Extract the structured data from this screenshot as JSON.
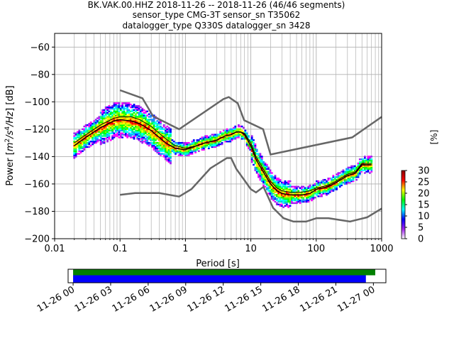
{
  "chart_data": {
    "type": "heatmap",
    "title": {
      "line1": "BK.VAK.00.HHZ   2018-11-26 -- 2018-11-26  (46/46 segments)",
      "line2": "sensor_type CMG-3T sensor_sn T35062",
      "line3": "datalogger_type Q330S datalogger_sn 3428"
    },
    "xlabel": "Period [s]",
    "ylabel_parts": {
      "a": "Power [",
      "b": "m",
      "c": "2",
      "d": "/s",
      "e": "4",
      "f": "/Hz",
      "g": "] [dB]"
    },
    "xscale": "log",
    "xlim": [
      0.01,
      1000
    ],
    "ylim": [
      -200,
      -50
    ],
    "grid": true,
    "x_tick_labels": [
      "0.01",
      "0.1",
      "1",
      "10",
      "100",
      "1000"
    ],
    "x_tick_values": [
      0.01,
      0.1,
      1,
      10,
      100,
      1000
    ],
    "y_tick_labels": [
      "−60",
      "−80",
      "−100",
      "−120",
      "−140",
      "−160",
      "−180",
      "−200"
    ],
    "y_tick_values": [
      -60,
      -80,
      -100,
      -120,
      -140,
      -160,
      -180,
      -200
    ],
    "colorbar": {
      "label": "[%]",
      "range": [
        0,
        30
      ],
      "tick_labels": [
        "0",
        "5",
        "10",
        "15",
        "20",
        "25",
        "30"
      ],
      "tick_values": [
        0,
        5,
        10,
        15,
        20,
        25,
        30
      ],
      "colors": [
        "#ffffff",
        "#a020f0",
        "#0000ff",
        "#00ffff",
        "#00ff00",
        "#ffff00",
        "#ff0000",
        "#8b0000"
      ]
    },
    "noise_models": {
      "color": "#666666",
      "high": [
        [
          0.1,
          -91.5
        ],
        [
          0.22,
          -97.4
        ],
        [
          0.32,
          -110.5
        ],
        [
          0.8,
          -120
        ],
        [
          3.8,
          -98
        ],
        [
          4.6,
          -96.5
        ],
        [
          6.3,
          -101
        ],
        [
          7.9,
          -113.5
        ],
        [
          15.4,
          -120
        ],
        [
          20,
          -138.5
        ],
        [
          354.8,
          -126
        ],
        [
          1000,
          -111
        ]
      ],
      "low": [
        [
          0.1,
          -168
        ],
        [
          0.17,
          -166.7
        ],
        [
          0.4,
          -166.7
        ],
        [
          0.8,
          -169.2
        ],
        [
          1.24,
          -163.7
        ],
        [
          2.4,
          -148.6
        ],
        [
          4.3,
          -141.1
        ],
        [
          5,
          -141.1
        ],
        [
          6,
          -149
        ],
        [
          10,
          -163.8
        ],
        [
          12,
          -166.2
        ],
        [
          15.6,
          -162.1
        ],
        [
          21.9,
          -177.5
        ],
        [
          31.6,
          -185
        ],
        [
          45,
          -187.5
        ],
        [
          70,
          -187.5
        ],
        [
          101,
          -185
        ],
        [
          154,
          -185
        ],
        [
          328,
          -187.5
        ],
        [
          600,
          -184.4
        ],
        [
          1000,
          -178
        ]
      ]
    },
    "median_curve": {
      "color": "#000000",
      "points": [
        [
          0.02,
          -132
        ],
        [
          0.03,
          -126
        ],
        [
          0.05,
          -119
        ],
        [
          0.08,
          -114
        ],
        [
          0.1,
          -113
        ],
        [
          0.15,
          -114
        ],
        [
          0.2,
          -116
        ],
        [
          0.3,
          -121
        ],
        [
          0.5,
          -130
        ],
        [
          0.7,
          -134
        ],
        [
          1,
          -135
        ],
        [
          1.5,
          -132
        ],
        [
          2,
          -130
        ],
        [
          3,
          -128
        ],
        [
          4,
          -125
        ],
        [
          5,
          -124
        ],
        [
          6,
          -122
        ],
        [
          7,
          -122
        ],
        [
          8,
          -124
        ],
        [
          10,
          -132
        ],
        [
          12,
          -142
        ],
        [
          15,
          -150
        ],
        [
          20,
          -160
        ],
        [
          25,
          -165
        ],
        [
          30,
          -167
        ],
        [
          40,
          -168
        ],
        [
          60,
          -168
        ],
        [
          80,
          -167
        ],
        [
          100,
          -164
        ],
        [
          150,
          -162
        ],
        [
          200,
          -159
        ],
        [
          300,
          -154
        ],
        [
          400,
          -152
        ],
        [
          500,
          -146
        ],
        [
          700,
          -146
        ]
      ]
    },
    "mode_curve": {
      "color": "#000000",
      "points": [
        [
          0.02,
          -130
        ],
        [
          0.03,
          -124
        ],
        [
          0.05,
          -117
        ],
        [
          0.08,
          -112
        ],
        [
          0.1,
          -111
        ],
        [
          0.15,
          -111
        ],
        [
          0.2,
          -113
        ],
        [
          0.3,
          -118
        ],
        [
          0.5,
          -127
        ],
        [
          0.7,
          -132
        ],
        [
          1,
          -134
        ],
        [
          1.5,
          -132
        ],
        [
          2,
          -130
        ],
        [
          3,
          -128
        ],
        [
          4,
          -125
        ],
        [
          5,
          -124
        ],
        [
          6,
          -122
        ],
        [
          7,
          -122
        ],
        [
          8,
          -123
        ],
        [
          10,
          -130
        ],
        [
          12,
          -140
        ],
        [
          15,
          -148
        ],
        [
          20,
          -158
        ],
        [
          25,
          -163
        ],
        [
          30,
          -165
        ],
        [
          40,
          -166
        ],
        [
          60,
          -166
        ],
        [
          80,
          -165
        ],
        [
          100,
          -163
        ],
        [
          150,
          -161
        ],
        [
          200,
          -158
        ],
        [
          300,
          -153
        ],
        [
          400,
          -151
        ],
        [
          500,
          -145
        ],
        [
          700,
          -145
        ]
      ]
    },
    "data_coverage": {
      "x_tick_labels": [
        "11-26 00",
        "11-26 03",
        "11-26 06",
        "11-26 09",
        "11-26 12",
        "11-26 15",
        "11-26 18",
        "11-26 21",
        "11-27 00"
      ],
      "hours_range": [
        -0.4,
        25
      ],
      "green_bar_hours": [
        0,
        24.15
      ],
      "blue_bar_hours": [
        0,
        23.4
      ],
      "green_color": "#008000",
      "blue_color": "#0000ff"
    }
  }
}
